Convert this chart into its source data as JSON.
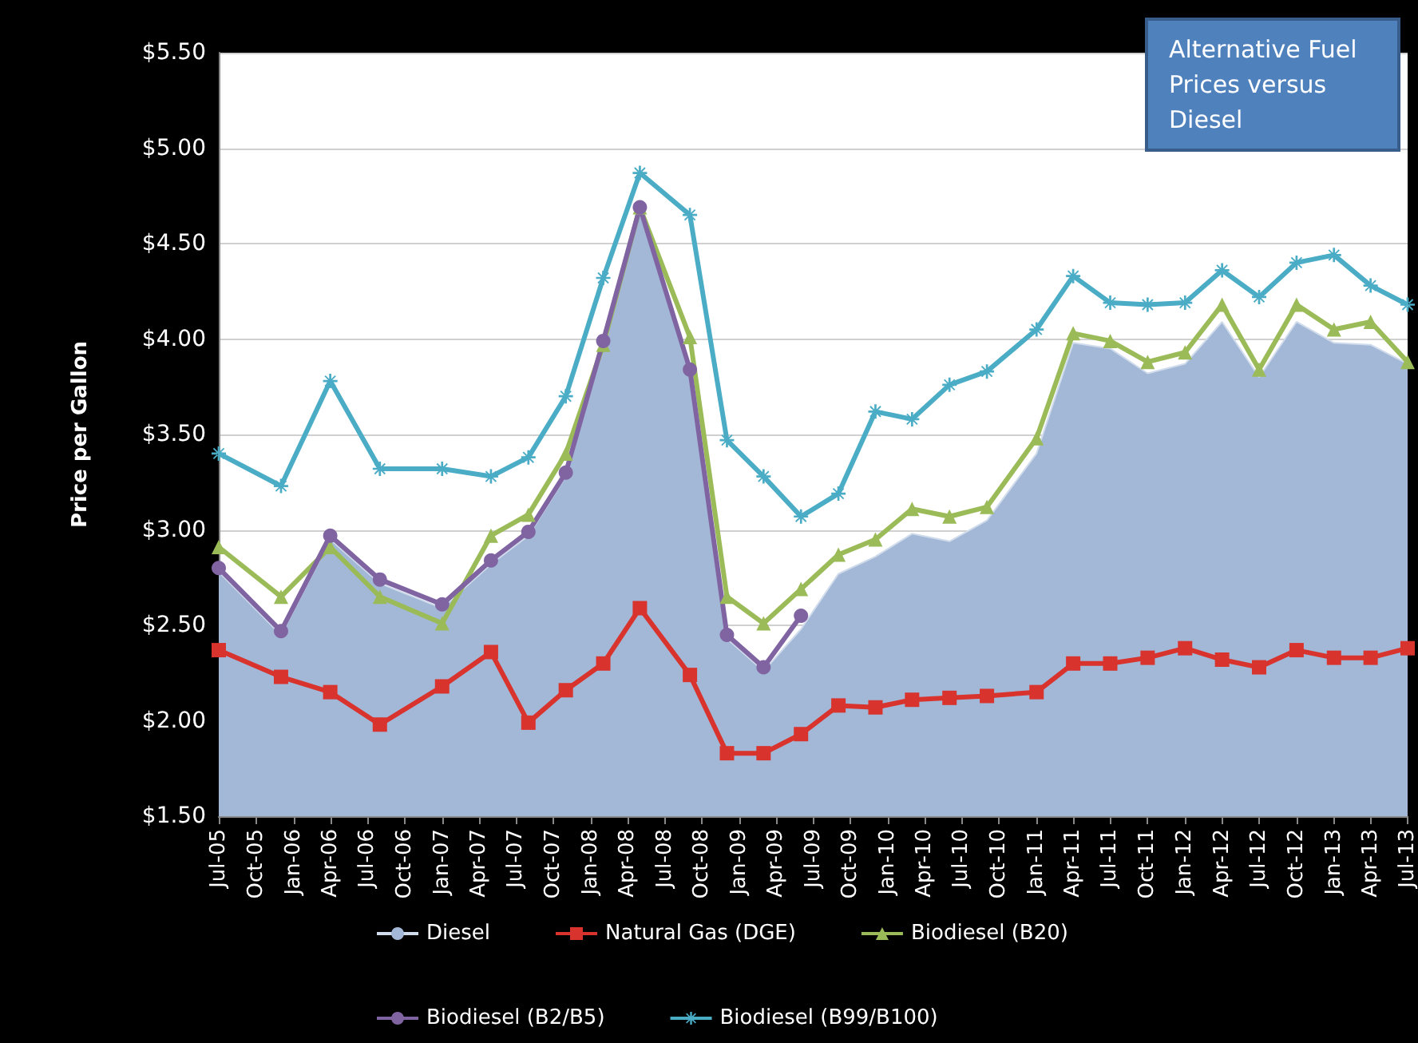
{
  "chart_data": {
    "type": "line",
    "title": "Alternative Fuel Prices versus Diesel",
    "ylabel": "Price per Gallon",
    "x": [
      "2005-07",
      "2005-12",
      "2006-04",
      "2006-08",
      "2007-01",
      "2007-05",
      "2007-08",
      "2007-11",
      "2008-02",
      "2008-05",
      "2008-09",
      "2008-12",
      "2009-03",
      "2009-06",
      "2009-09",
      "2009-12",
      "2010-03",
      "2010-06",
      "2010-09",
      "2011-01",
      "2011-04",
      "2011-07",
      "2011-10",
      "2012-01",
      "2012-04",
      "2012-07",
      "2012-10",
      "2013-01",
      "2013-04",
      "2013-07"
    ],
    "xlim": [
      "2005-07",
      "2013-07"
    ],
    "xticks": [
      {
        "value": "2005-07",
        "label": "Jul-05"
      },
      {
        "value": "2005-10",
        "label": "Oct-05"
      },
      {
        "value": "2006-01",
        "label": "Jan-06"
      },
      {
        "value": "2006-04",
        "label": "Apr-06"
      },
      {
        "value": "2006-07",
        "label": "Jul-06"
      },
      {
        "value": "2006-10",
        "label": "Oct-06"
      },
      {
        "value": "2007-01",
        "label": "Jan-07"
      },
      {
        "value": "2007-04",
        "label": "Apr-07"
      },
      {
        "value": "2007-07",
        "label": "Jul-07"
      },
      {
        "value": "2007-10",
        "label": "Oct-07"
      },
      {
        "value": "2008-01",
        "label": "Jan-08"
      },
      {
        "value": "2008-04",
        "label": "Apr-08"
      },
      {
        "value": "2008-07",
        "label": "Jul-08"
      },
      {
        "value": "2008-10",
        "label": "Oct-08"
      },
      {
        "value": "2009-01",
        "label": "Jan-09"
      },
      {
        "value": "2009-04",
        "label": "Apr-09"
      },
      {
        "value": "2009-07",
        "label": "Jul-09"
      },
      {
        "value": "2009-10",
        "label": "Oct-09"
      },
      {
        "value": "2010-01",
        "label": "Jan-10"
      },
      {
        "value": "2010-04",
        "label": "Apr-10"
      },
      {
        "value": "2010-07",
        "label": "Jul-10"
      },
      {
        "value": "2010-10",
        "label": "Oct-10"
      },
      {
        "value": "2011-01",
        "label": "Jan-11"
      },
      {
        "value": "2011-04",
        "label": "Apr-11"
      },
      {
        "value": "2011-07",
        "label": "Jul-11"
      },
      {
        "value": "2011-10",
        "label": "Oct-11"
      },
      {
        "value": "2012-01",
        "label": "Jan-12"
      },
      {
        "value": "2012-04",
        "label": "Apr-12"
      },
      {
        "value": "2012-07",
        "label": "Jul-12"
      },
      {
        "value": "2012-10",
        "label": "Oct-12"
      },
      {
        "value": "2013-01",
        "label": "Jan-13"
      },
      {
        "value": "2013-04",
        "label": "Apr-13"
      },
      {
        "value": "2013-07",
        "label": "Jul-13"
      }
    ],
    "ylim": [
      1.5,
      5.5
    ],
    "yticks": [
      {
        "value": 1.5,
        "label": "$1.50"
      },
      {
        "value": 2,
        "label": "$2.00"
      },
      {
        "value": 2.5,
        "label": "$2.50"
      },
      {
        "value": 3,
        "label": "$3.00"
      },
      {
        "value": 3.5,
        "label": "$3.50"
      },
      {
        "value": 4,
        "label": "$4.00"
      },
      {
        "value": 4.5,
        "label": "$4.50"
      },
      {
        "value": 5,
        "label": "$5.00"
      },
      {
        "value": 5.5,
        "label": "$5.50"
      }
    ],
    "grid": "y",
    "legend": "bottom",
    "series": [
      {
        "name": "Diesel",
        "type": "area",
        "color": "#a3b8d6",
        "values": [
          2.78,
          2.45,
          2.95,
          2.72,
          2.59,
          2.82,
          2.97,
          3.28,
          3.97,
          4.67,
          3.82,
          2.43,
          2.26,
          2.48,
          2.77,
          2.86,
          2.98,
          2.94,
          3.05,
          3.4,
          3.98,
          3.95,
          3.82,
          3.87,
          4.09,
          3.8,
          4.09,
          3.98,
          3.97,
          3.87
        ]
      },
      {
        "name": "Natural Gas (DGE)",
        "marker": "square",
        "color": "#d9332e",
        "values": [
          2.37,
          2.23,
          2.15,
          1.98,
          2.18,
          2.36,
          1.99,
          2.16,
          2.3,
          2.59,
          2.24,
          1.83,
          1.83,
          1.93,
          2.08,
          2.07,
          2.11,
          2.12,
          2.13,
          2.15,
          2.3,
          2.3,
          2.33,
          2.38,
          2.32,
          2.28,
          2.37,
          2.33,
          2.33,
          2.38
        ]
      },
      {
        "name": "Biodiesel (B20)",
        "marker": "triangle",
        "color": "#9bbb59",
        "values": [
          2.91,
          2.65,
          2.91,
          2.65,
          2.51,
          2.97,
          3.08,
          3.4,
          3.97,
          4.69,
          4.01,
          2.65,
          2.51,
          2.69,
          2.87,
          2.95,
          3.11,
          3.07,
          3.12,
          3.48,
          4.03,
          3.99,
          3.88,
          3.93,
          4.18,
          3.84,
          4.18,
          4.05,
          4.09,
          3.88
        ]
      },
      {
        "name": "Biodiesel (B2/B5)",
        "marker": "circle",
        "color": "#8064a2",
        "values": [
          2.8,
          2.47,
          2.97,
          2.74,
          2.61,
          2.84,
          2.99,
          3.3,
          3.99,
          4.69,
          3.84,
          2.45,
          2.28,
          2.55,
          null,
          null,
          null,
          null,
          null,
          null,
          null,
          null,
          null,
          null,
          null,
          null,
          null,
          null,
          null,
          null
        ]
      },
      {
        "name": "Biodiesel (B99/B100)",
        "marker": "cross",
        "color": "#4bacc6",
        "values": [
          3.4,
          3.23,
          3.78,
          3.32,
          3.32,
          3.28,
          3.38,
          3.7,
          4.32,
          4.87,
          4.65,
          3.47,
          3.28,
          3.07,
          3.19,
          3.62,
          3.58,
          3.76,
          3.83,
          4.05,
          4.33,
          4.19,
          4.18,
          4.19,
          4.36,
          4.22,
          4.4,
          4.44,
          4.28,
          4.18
        ]
      }
    ]
  }
}
